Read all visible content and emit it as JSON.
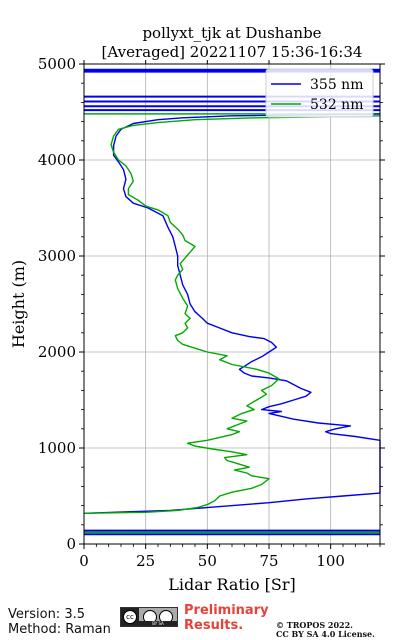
{
  "chart_data": {
    "type": "line",
    "title_line1": "pollyxt_tjk at Dushanbe",
    "title_line2": "[Averaged] 20221107 15:36-16:34",
    "xlabel": "Lidar Ratio [Sr]",
    "ylabel": "Height (m)",
    "xlim": [
      0,
      120
    ],
    "ylim": [
      0,
      5000
    ],
    "xticks": [
      0,
      25,
      50,
      75,
      100
    ],
    "yticks": [
      0,
      1000,
      2000,
      3000,
      4000,
      5000
    ],
    "grid": true,
    "legend_position": "top-right",
    "series": [
      {
        "name": "355 nm",
        "color": "#0000ee",
        "points": [
          [
            0,
            320
          ],
          [
            35,
            350
          ],
          [
            55,
            390
          ],
          [
            75,
            430
          ],
          [
            90,
            470
          ],
          [
            105,
            500
          ],
          [
            120,
            530
          ],
          [
            120,
            1080
          ],
          [
            110,
            1120
          ],
          [
            100,
            1150
          ],
          [
            98,
            1170
          ],
          [
            102,
            1200
          ],
          [
            108,
            1230
          ],
          [
            95,
            1260
          ],
          [
            85,
            1300
          ],
          [
            75,
            1360
          ],
          [
            80,
            1380
          ],
          [
            72,
            1400
          ],
          [
            75,
            1430
          ],
          [
            80,
            1460
          ],
          [
            85,
            1500
          ],
          [
            90,
            1540
          ],
          [
            92,
            1580
          ],
          [
            88,
            1620
          ],
          [
            85,
            1660
          ],
          [
            82,
            1700
          ],
          [
            75,
            1730
          ],
          [
            68,
            1750
          ],
          [
            65,
            1780
          ],
          [
            63,
            1820
          ],
          [
            65,
            1850
          ],
          [
            68,
            1900
          ],
          [
            72,
            1950
          ],
          [
            75,
            2000
          ],
          [
            78,
            2050
          ],
          [
            76,
            2100
          ],
          [
            73,
            2140
          ],
          [
            67,
            2160
          ],
          [
            60,
            2200
          ],
          [
            55,
            2250
          ],
          [
            50,
            2300
          ],
          [
            48,
            2350
          ],
          [
            45,
            2420
          ],
          [
            43,
            2500
          ],
          [
            42,
            2600
          ],
          [
            40,
            2700
          ],
          [
            39,
            2800
          ],
          [
            38,
            2900
          ],
          [
            38,
            3000
          ],
          [
            37,
            3100
          ],
          [
            36,
            3200
          ],
          [
            34,
            3300
          ],
          [
            32,
            3420
          ],
          [
            26,
            3500
          ],
          [
            20,
            3550
          ],
          [
            17,
            3620
          ],
          [
            16,
            3700
          ],
          [
            17,
            3800
          ],
          [
            16,
            3900
          ],
          [
            14,
            3980
          ],
          [
            12,
            4050
          ],
          [
            12,
            4150
          ],
          [
            13,
            4250
          ],
          [
            15,
            4320
          ],
          [
            20,
            4380
          ],
          [
            30,
            4420
          ],
          [
            40,
            4440
          ],
          [
            60,
            4460
          ],
          [
            90,
            4470
          ],
          [
            120,
            4480
          ]
        ]
      },
      {
        "name": "532 nm",
        "color": "#00aa00",
        "points": [
          [
            0,
            320
          ],
          [
            25,
            330
          ],
          [
            38,
            350
          ],
          [
            46,
            380
          ],
          [
            50,
            410
          ],
          [
            53,
            450
          ],
          [
            55,
            500
          ],
          [
            60,
            540
          ],
          [
            68,
            580
          ],
          [
            72,
            620
          ],
          [
            75,
            680
          ],
          [
            68,
            710
          ],
          [
            66,
            740
          ],
          [
            61,
            770
          ],
          [
            67,
            800
          ],
          [
            62,
            840
          ],
          [
            58,
            870
          ],
          [
            57,
            900
          ],
          [
            66,
            930
          ],
          [
            60,
            960
          ],
          [
            52,
            990
          ],
          [
            45,
            1020
          ],
          [
            42,
            1050
          ],
          [
            50,
            1080
          ],
          [
            55,
            1110
          ],
          [
            60,
            1140
          ],
          [
            63,
            1170
          ],
          [
            58,
            1200
          ],
          [
            62,
            1240
          ],
          [
            66,
            1280
          ],
          [
            60,
            1310
          ],
          [
            64,
            1360
          ],
          [
            69,
            1400
          ],
          [
            66,
            1440
          ],
          [
            70,
            1500
          ],
          [
            74,
            1560
          ],
          [
            72,
            1600
          ],
          [
            76,
            1650
          ],
          [
            79,
            1720
          ],
          [
            75,
            1780
          ],
          [
            70,
            1820
          ],
          [
            60,
            1870
          ],
          [
            55,
            1920
          ],
          [
            58,
            1960
          ],
          [
            50,
            2000
          ],
          [
            45,
            2040
          ],
          [
            40,
            2080
          ],
          [
            38,
            2120
          ],
          [
            37,
            2170
          ],
          [
            40,
            2200
          ],
          [
            42,
            2250
          ],
          [
            41,
            2300
          ],
          [
            43,
            2350
          ],
          [
            41,
            2400
          ],
          [
            42,
            2480
          ],
          [
            40,
            2560
          ],
          [
            38,
            2660
          ],
          [
            37,
            2750
          ],
          [
            38,
            2800
          ],
          [
            40,
            2860
          ],
          [
            39,
            2920
          ],
          [
            41,
            2980
          ],
          [
            43,
            3040
          ],
          [
            45,
            3100
          ],
          [
            41,
            3160
          ],
          [
            40,
            3220
          ],
          [
            38,
            3280
          ],
          [
            35,
            3350
          ],
          [
            34,
            3420
          ],
          [
            30,
            3480
          ],
          [
            25,
            3520
          ],
          [
            22,
            3580
          ],
          [
            18,
            3640
          ],
          [
            18,
            3700
          ],
          [
            20,
            3780
          ],
          [
            19,
            3860
          ],
          [
            17,
            3940
          ],
          [
            14,
            4000
          ],
          [
            12,
            4080
          ],
          [
            11,
            4160
          ],
          [
            12,
            4250
          ],
          [
            14,
            4320
          ],
          [
            20,
            4360
          ],
          [
            30,
            4390
          ],
          [
            45,
            4420
          ],
          [
            70,
            4440
          ],
          [
            100,
            4450
          ],
          [
            120,
            4460
          ]
        ]
      }
    ],
    "blue_top_bands": [
      4920,
      4930,
      4940,
      4660,
      4610,
      4560,
      4520
    ],
    "blue_bottom_bands": [
      140,
      120,
      100
    ]
  },
  "footer": {
    "version": "Version: 3.5",
    "method": "Method: Raman",
    "preliminary_line1": "Preliminary",
    "preliminary_line2": "Results.",
    "copyright_line1": "© TROPOS 2022.",
    "copyright_line2": "CC BY SA 4.0 License.",
    "cc_mark": "cc",
    "cc_by": "BY",
    "cc_sa": "SA"
  }
}
